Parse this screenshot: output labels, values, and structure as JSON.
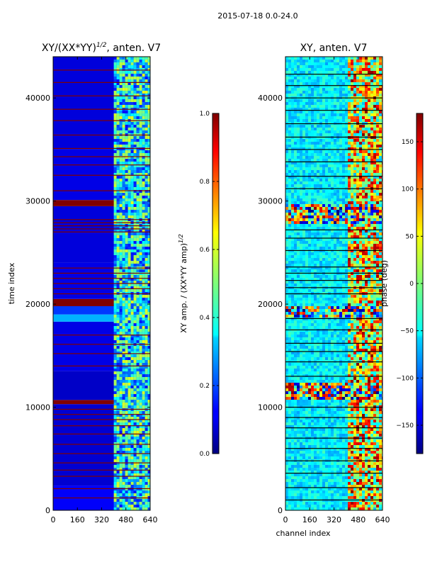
{
  "figure": {
    "suptitle": "2015-07-18 0.0-24.0"
  },
  "chart_data": [
    {
      "type": "heatmap",
      "title": "XY/(XX*YY)",
      "title_exponent": "1/2",
      "title_suffix": ", anten. V7",
      "xlabel": "",
      "ylabel": "time index",
      "xlim": [
        0,
        640
      ],
      "ylim": [
        0,
        44000
      ],
      "x_ticks": [
        0,
        160,
        320,
        480,
        640
      ],
      "y_ticks": [
        0,
        10000,
        20000,
        30000,
        40000
      ],
      "colormap": "jet",
      "background_rows": [
        {
          "from": 0,
          "to": 2400,
          "value": 0.12
        },
        {
          "from": 2400,
          "to": 10300,
          "value": 0.08
        },
        {
          "from": 10300,
          "to": 10700,
          "value": 1.0
        },
        {
          "from": 10700,
          "to": 13500,
          "value": 0.07
        },
        {
          "from": 13500,
          "to": 18300,
          "value": 0.1
        },
        {
          "from": 18300,
          "to": 19000,
          "value": 0.3
        },
        {
          "from": 19000,
          "to": 19800,
          "value": 0.18
        },
        {
          "from": 19800,
          "to": 20500,
          "value": 1.0
        },
        {
          "from": 20500,
          "to": 24000,
          "value": 0.1
        },
        {
          "from": 24000,
          "to": 29500,
          "value": 0.09
        },
        {
          "from": 29500,
          "to": 30100,
          "value": 1.0
        },
        {
          "from": 30100,
          "to": 35000,
          "value": 0.1
        },
        {
          "from": 35000,
          "to": 44000,
          "value": 0.09
        }
      ],
      "flagged_rows": [
        1200,
        2100,
        3300,
        3900,
        4600,
        5500,
        6400,
        7400,
        8200,
        8800,
        9300,
        9800,
        14000,
        15200,
        16100,
        17000,
        21000,
        21500,
        22000,
        22500,
        23000,
        23500,
        27000,
        27300,
        27600,
        27900,
        28200,
        31000,
        32500,
        33500,
        34300,
        35100,
        36400,
        37800,
        38900,
        40200,
        41500,
        42700
      ],
      "bright_band": {
        "x_from": 400,
        "x_to": 640,
        "value": 0.55
      },
      "colorbar": {
        "label": "XY amp. / (XX*YY amp)",
        "label_exponent": "1/2",
        "range": [
          0.0,
          1.0
        ],
        "ticks": [
          "0.0",
          "0.2",
          "0.4",
          "0.6",
          "0.8",
          "1.0"
        ],
        "tick_values": [
          0.0,
          0.2,
          0.4,
          0.6,
          0.8,
          1.0
        ]
      }
    },
    {
      "type": "heatmap",
      "title": "XY, anten. V7",
      "xlabel": "channel index",
      "ylabel": "",
      "xlim": [
        0,
        640
      ],
      "ylim": [
        0,
        44000
      ],
      "x_ticks": [
        0,
        160,
        320,
        480,
        640
      ],
      "y_ticks": [
        0,
        10000,
        20000,
        30000,
        40000
      ],
      "colormap": "jet",
      "phase_band_rows": [
        {
          "from": 10800,
          "to": 12600
        },
        {
          "from": 18800,
          "to": 20000
        },
        {
          "from": 28000,
          "to": 29800
        }
      ],
      "flagged_rows": [
        1000,
        2200,
        3600,
        4800,
        6000,
        7000,
        8000,
        9000,
        10000,
        13000,
        14400,
        15400,
        16200,
        17500,
        18600,
        21000,
        21600,
        22300,
        23000,
        23600,
        25200,
        26400,
        27200,
        31200,
        32400,
        33800,
        35000,
        36200,
        37500,
        38800,
        40000,
        41200,
        42300
      ],
      "colorbar": {
        "label": "phase (deg)",
        "range": [
          -180,
          180
        ],
        "ticks": [
          "−150",
          "−100",
          "−50",
          "0",
          "50",
          "100",
          "150"
        ],
        "tick_values": [
          -150,
          -100,
          -50,
          0,
          50,
          100,
          150
        ]
      }
    }
  ]
}
